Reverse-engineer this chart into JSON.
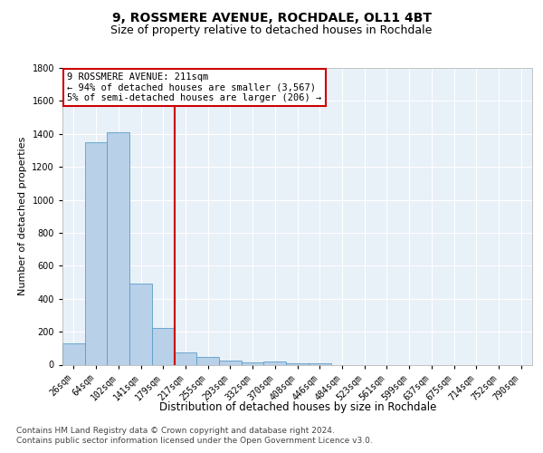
{
  "title1": "9, ROSSMERE AVENUE, ROCHDALE, OL11 4BT",
  "title2": "Size of property relative to detached houses in Rochdale",
  "xlabel": "Distribution of detached houses by size in Rochdale",
  "ylabel": "Number of detached properties",
  "footer1": "Contains HM Land Registry data © Crown copyright and database right 2024.",
  "footer2": "Contains public sector information licensed under the Open Government Licence v3.0.",
  "categories": [
    "26sqm",
    "64sqm",
    "102sqm",
    "141sqm",
    "179sqm",
    "217sqm",
    "255sqm",
    "293sqm",
    "332sqm",
    "370sqm",
    "408sqm",
    "446sqm",
    "484sqm",
    "523sqm",
    "561sqm",
    "599sqm",
    "637sqm",
    "675sqm",
    "714sqm",
    "752sqm",
    "790sqm"
  ],
  "values": [
    130,
    1350,
    1410,
    490,
    225,
    75,
    45,
    25,
    15,
    20,
    10,
    10,
    0,
    0,
    0,
    0,
    0,
    0,
    0,
    0,
    0
  ],
  "bar_color": "#b8d0e8",
  "bar_edge_color": "#5a9ec8",
  "vline_x": 4.5,
  "vline_color": "#cc0000",
  "annotation_line1": "9 ROSSMERE AVENUE: 211sqm",
  "annotation_line2": "← 94% of detached houses are smaller (3,567)",
  "annotation_line3": "5% of semi-detached houses are larger (206) →",
  "annotation_box_color": "#cc0000",
  "annotation_bg_color": "#ffffff",
  "ylim": [
    0,
    1800
  ],
  "yticks": [
    0,
    200,
    400,
    600,
    800,
    1000,
    1200,
    1400,
    1600,
    1800
  ],
  "bg_color": "#e8f0f8",
  "grid_color": "#ffffff",
  "title1_fontsize": 10,
  "title2_fontsize": 9,
  "xlabel_fontsize": 8.5,
  "ylabel_fontsize": 8,
  "tick_fontsize": 7,
  "footer_fontsize": 6.5,
  "ann_fontsize": 7.5
}
